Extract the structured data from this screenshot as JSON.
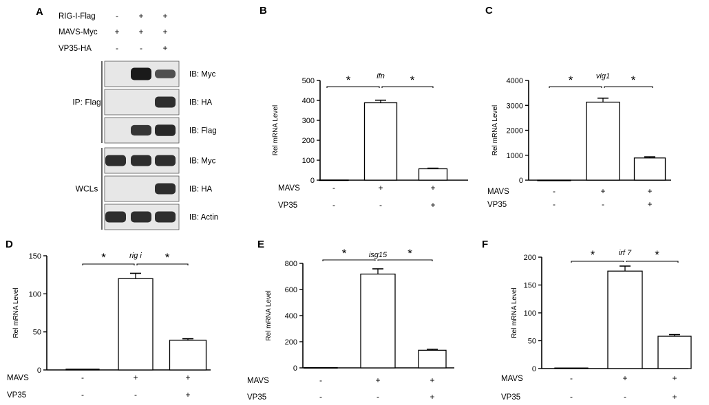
{
  "western_blot": {
    "panel_label": "A",
    "conditions": [
      {
        "label": "RIG-I-Flag",
        "signs": [
          "-",
          "+",
          "+"
        ]
      },
      {
        "label": "MAVS-Myc",
        "signs": [
          "+",
          "+",
          "+"
        ]
      },
      {
        "label": "VP35-HA",
        "signs": [
          "-",
          "-",
          "+"
        ]
      }
    ],
    "groups": [
      {
        "label": "IP: Flag",
        "blots": [
          {
            "label": "IB: Myc",
            "bands": [
              0.0,
              1.0,
              0.6
            ]
          },
          {
            "label": "IB: HA",
            "bands": [
              0.0,
              0.0,
              0.85
            ]
          },
          {
            "label": "IB: Flag",
            "bands": [
              0.0,
              0.8,
              0.9
            ]
          }
        ]
      },
      {
        "label": "WCLs",
        "blots": [
          {
            "label": "IB: Myc",
            "bands": [
              0.85,
              0.85,
              0.85
            ]
          },
          {
            "label": "IB: HA",
            "bands": [
              0.0,
              0.0,
              0.85
            ]
          },
          {
            "label": "IB: Actin",
            "bands": [
              0.85,
              0.85,
              0.85
            ]
          }
        ]
      }
    ]
  },
  "chart_data": [
    {
      "panel": "B",
      "type": "bar",
      "title": "ifn",
      "ylabel": "Rel mRNA Level",
      "ylim": [
        0,
        500
      ],
      "yticks": [
        "0",
        "100",
        "200",
        "300",
        "400",
        "500"
      ],
      "values": [
        1,
        388,
        57
      ],
      "errors": [
        0.5,
        13,
        3
      ],
      "mavs": [
        "-",
        "+",
        "+"
      ],
      "vp35": [
        "-",
        "-",
        "+"
      ],
      "sig": [
        "*",
        "*"
      ]
    },
    {
      "panel": "C",
      "type": "bar",
      "title": "vig1",
      "ylabel": "Rel mRNA Level",
      "ylim": [
        0,
        4000
      ],
      "yticks": [
        "0",
        "1000",
        "2000",
        "3000",
        "4000"
      ],
      "values": [
        1,
        3130,
        890
      ],
      "errors": [
        1,
        160,
        45
      ],
      "mavs": [
        "-",
        "+",
        "+"
      ],
      "vp35": [
        "-",
        "-",
        "+"
      ],
      "sig": [
        "*",
        "*"
      ]
    },
    {
      "panel": "D",
      "type": "bar",
      "title": "rig i",
      "ylabel": "Rel mRNA Level",
      "ylim": [
        0,
        150
      ],
      "yticks": [
        "0",
        "50",
        "100",
        "150"
      ],
      "values": [
        1,
        120,
        39
      ],
      "errors": [
        0.3,
        7,
        2
      ],
      "mavs": [
        "-",
        "+",
        "+"
      ],
      "vp35": [
        "-",
        "-",
        "+"
      ],
      "sig": [
        "*",
        "*"
      ]
    },
    {
      "panel": "E",
      "type": "bar",
      "title": "isg15",
      "ylabel": "Rel mRNA Level",
      "ylim": [
        0,
        800
      ],
      "yticks": [
        "0",
        "200",
        "400",
        "600",
        "800"
      ],
      "values": [
        2,
        718,
        135
      ],
      "errors": [
        1,
        40,
        7
      ],
      "mavs": [
        "-",
        "+",
        "+"
      ],
      "vp35": [
        "-",
        "-",
        "+"
      ],
      "sig": [
        "*",
        "*"
      ]
    },
    {
      "panel": "F",
      "type": "bar",
      "title": "irf 7",
      "ylabel": "Rel mRNA Level",
      "ylim": [
        0,
        200
      ],
      "yticks": [
        "0",
        "50",
        "100",
        "150",
        "200"
      ],
      "values": [
        1,
        175,
        58
      ],
      "errors": [
        0.5,
        9,
        3
      ],
      "mavs": [
        "-",
        "+",
        "+"
      ],
      "vp35": [
        "-",
        "-",
        "+"
      ],
      "sig": [
        "*",
        "*"
      ]
    }
  ],
  "row_labels": {
    "mavs": "MAVS",
    "vp35": "VP35"
  },
  "colors": {
    "axis": "#000000",
    "bar_fill": "#ffffff",
    "blot_bg": "#e7e7e7",
    "band": "#1a1a1a"
  }
}
